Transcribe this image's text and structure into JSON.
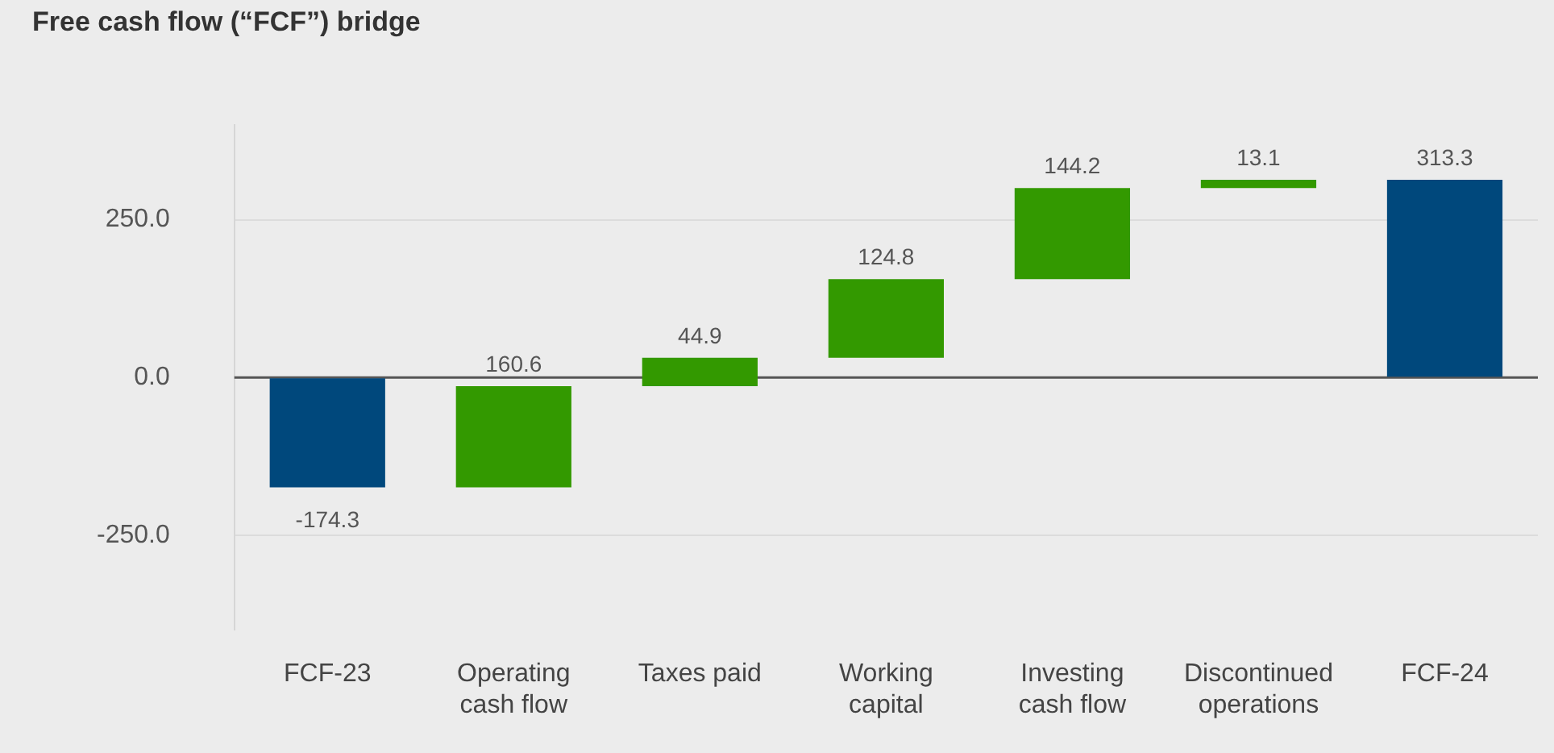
{
  "chart_data": {
    "type": "bar",
    "title": "Free cash flow (“FCF”) bridge",
    "categories": [
      "FCF-23",
      "Operating cash flow",
      "Taxes paid",
      "Working capital",
      "Investing cash flow",
      "Discontinued operations",
      "FCF-24"
    ],
    "values": [
      -174.3,
      160.6,
      44.9,
      124.8,
      144.2,
      13.1,
      313.3
    ],
    "base": [
      0,
      -174.3,
      -13.7,
      31.2,
      156.0,
      300.2,
      0
    ],
    "colors": [
      "#00487c",
      "#339900",
      "#339900",
      "#339900",
      "#339900",
      "#339900",
      "#00487c"
    ],
    "ylim": [
      -400,
      400
    ],
    "yticks": [
      {
        "value": -250,
        "label": "-250.0"
      },
      {
        "value": 0,
        "label": "0.0"
      },
      {
        "value": 250,
        "label": "250.0"
      }
    ],
    "grid": "y",
    "data_labels": true,
    "legend": false
  }
}
